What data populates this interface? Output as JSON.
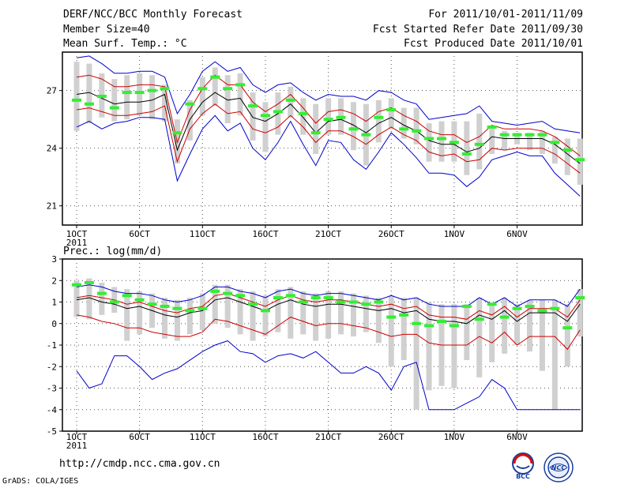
{
  "header": {
    "title": "DERF/NCC/BCC Monthly Forecast",
    "member_size": "Member Size=40",
    "variable": "Mean Surf. Temp.: °C",
    "period": "For 2011/10/01-2011/11/09",
    "refer_date": "Fcst Started Refer Date 2011/09/30",
    "produced_date": "Fcst Produced Date 2011/10/01"
  },
  "footer": {
    "url": "http://cmdp.ncc.cma.gov.cn",
    "credit": "GrADS: COLA/IGES",
    "logo1_text": "BCC",
    "logo2_text": "NCC"
  },
  "colors": {
    "mean": "#000000",
    "inner": "#cc0000",
    "outer": "#0000cc",
    "box": "#d0d0d0",
    "marker": "#33ee33",
    "grid": "#000000"
  },
  "chart_data": [
    {
      "type": "line",
      "title": "Mean Surf. Temp.: °C",
      "xlabel": "",
      "ylabel": "",
      "days": 40,
      "ylim": [
        20,
        29
      ],
      "yticks": [
        21,
        24,
        27
      ],
      "ytick_labels": [
        "21",
        "24",
        "27"
      ],
      "xtick_labels": [
        "1OCT",
        "6OCT",
        "11OCT",
        "16OCT",
        "21OCT",
        "26OCT",
        "1NOV",
        "6NOV"
      ],
      "year_label": "2011",
      "mean": [
        26.8,
        26.9,
        26.6,
        26.3,
        26.4,
        26.4,
        26.5,
        26.8,
        23.9,
        25.5,
        26.4,
        26.9,
        26.5,
        26.6,
        25.6,
        25.4,
        25.8,
        26.3,
        25.6,
        24.8,
        25.4,
        25.5,
        25.2,
        24.8,
        25.3,
        25.6,
        25.2,
        24.9,
        24.4,
        24.2,
        24.2,
        23.8,
        24.0,
        24.6,
        24.5,
        24.5,
        24.5,
        24.5,
        24.2,
        23.7,
        23.2
      ],
      "upper_red": [
        27.7,
        27.8,
        27.6,
        27.2,
        27.2,
        27.3,
        27.3,
        27.2,
        24.3,
        26.0,
        27.1,
        27.8,
        27.3,
        27.3,
        26.4,
        25.9,
        26.3,
        26.8,
        26.1,
        25.3,
        25.9,
        26.0,
        25.8,
        25.4,
        25.9,
        26.1,
        25.7,
        25.4,
        24.9,
        24.7,
        24.7,
        24.3,
        24.6,
        25.2,
        25.0,
        25.0,
        25.0,
        24.9,
        24.6,
        24.1,
        23.6
      ],
      "lower_red": [
        26.0,
        26.1,
        25.9,
        25.7,
        25.7,
        25.8,
        25.9,
        26.2,
        23.3,
        25.0,
        25.8,
        26.3,
        25.8,
        25.9,
        25.0,
        24.8,
        25.1,
        25.7,
        25.1,
        24.3,
        24.9,
        24.9,
        24.6,
        24.2,
        24.7,
        25.1,
        24.7,
        24.4,
        23.8,
        23.6,
        23.7,
        23.3,
        23.4,
        24.0,
        23.9,
        24.0,
        24.0,
        24.0,
        23.7,
        23.2,
        22.7
      ],
      "upper_blue": [
        28.7,
        28.8,
        28.4,
        27.9,
        27.9,
        28.0,
        28.0,
        27.7,
        25.8,
        26.8,
        28.0,
        28.5,
        28.0,
        28.2,
        27.3,
        26.9,
        27.3,
        27.4,
        26.9,
        26.5,
        26.8,
        26.7,
        26.7,
        26.5,
        27.0,
        26.9,
        26.5,
        26.3,
        25.5,
        25.6,
        25.7,
        25.8,
        26.2,
        25.4,
        25.3,
        25.2,
        25.3,
        25.4,
        25.0,
        24.9,
        24.8
      ],
      "lower_blue": [
        25.1,
        25.4,
        25.0,
        25.3,
        25.4,
        25.6,
        25.6,
        25.5,
        22.3,
        23.7,
        25.0,
        25.7,
        24.9,
        25.3,
        24.0,
        23.4,
        24.3,
        25.4,
        24.2,
        23.1,
        24.4,
        24.3,
        23.4,
        22.9,
        23.8,
        24.8,
        24.2,
        23.5,
        22.7,
        22.7,
        22.6,
        22.0,
        22.5,
        23.4,
        23.6,
        23.8,
        23.6,
        23.6,
        22.7,
        22.1,
        21.5
      ],
      "box_high": [
        28.5,
        28.4,
        27.9,
        27.6,
        27.8,
        27.9,
        27.8,
        27.3,
        25.5,
        26.5,
        27.7,
        28.2,
        27.8,
        27.9,
        26.9,
        26.4,
        26.9,
        27.2,
        26.6,
        26.3,
        26.6,
        26.6,
        26.4,
        26.3,
        26.5,
        26.6,
        26.1,
        26.1,
        25.3,
        25.4,
        25.4,
        25.4,
        25.8,
        25.1,
        24.9,
        24.8,
        24.8,
        24.9,
        24.6,
        24.5,
        24.5
      ],
      "box_low": [
        24.9,
        25.3,
        25.6,
        25.4,
        25.5,
        25.7,
        25.5,
        25.4,
        23.2,
        24.4,
        25.7,
        26.2,
        25.3,
        25.7,
        24.4,
        23.8,
        24.7,
        25.6,
        24.7,
        23.7,
        24.7,
        24.7,
        23.9,
        23.1,
        24.3,
        25.0,
        24.5,
        24.2,
        23.3,
        23.3,
        23.3,
        22.6,
        22.9,
        23.7,
        23.9,
        24.2,
        23.9,
        23.7,
        23.2,
        22.6,
        22.1
      ],
      "marker": [
        26.5,
        26.3,
        26.7,
        26.1,
        26.9,
        26.9,
        27.0,
        27.1,
        24.8,
        26.3,
        27.1,
        27.7,
        27.1,
        27.3,
        26.2,
        25.7,
        25.9,
        26.5,
        25.8,
        24.8,
        25.5,
        25.6,
        25.0,
        24.7,
        25.6,
        26.0,
        25.0,
        24.9,
        24.5,
        24.5,
        24.3,
        23.7,
        24.2,
        25.1,
        24.7,
        24.7,
        24.7,
        24.7,
        24.3,
        23.9,
        23.4
      ]
    },
    {
      "type": "line",
      "title": "Prec.: log(mm/d)",
      "xlabel": "",
      "ylabel": "",
      "days": 40,
      "ylim": [
        -5,
        3
      ],
      "yticks": [
        -5,
        -4,
        -3,
        -2,
        -1,
        0,
        1,
        2,
        3
      ],
      "ytick_labels": [
        "-5",
        "-4",
        "-3",
        "-2",
        "-1",
        "0",
        "1",
        "2",
        "3"
      ],
      "xtick_labels": [
        "1OCT",
        "6OCT",
        "11OCT",
        "16OCT",
        "21OCT",
        "26OCT",
        "1NOV",
        "6NOV"
      ],
      "year_label": "2011",
      "mean": [
        1.1,
        1.2,
        1.0,
        0.9,
        0.7,
        0.8,
        0.6,
        0.4,
        0.3,
        0.5,
        0.6,
        1.1,
        1.2,
        1.0,
        0.8,
        0.6,
        0.9,
        1.1,
        0.9,
        0.8,
        0.9,
        0.9,
        0.8,
        0.7,
        0.6,
        0.7,
        0.5,
        0.6,
        0.2,
        0.1,
        0.1,
        0.0,
        0.4,
        0.2,
        0.6,
        0.1,
        0.5,
        0.5,
        0.5,
        0.1,
        0.9
      ],
      "upper_red": [
        1.2,
        1.3,
        1.2,
        1.1,
        0.9,
        1.0,
        0.8,
        0.6,
        0.5,
        0.7,
        0.8,
        1.3,
        1.4,
        1.2,
        1.0,
        0.8,
        1.1,
        1.3,
        1.1,
        1.0,
        1.1,
        1.1,
        1.0,
        0.9,
        0.8,
        0.9,
        0.7,
        0.8,
        0.4,
        0.3,
        0.3,
        0.2,
        0.6,
        0.4,
        0.8,
        0.3,
        0.7,
        0.7,
        0.7,
        0.3,
        1.1
      ],
      "lower_red": [
        0.4,
        0.3,
        0.1,
        0.0,
        -0.2,
        -0.2,
        -0.4,
        -0.5,
        -0.6,
        -0.6,
        -0.4,
        0.2,
        0.1,
        -0.1,
        -0.3,
        -0.5,
        -0.1,
        0.3,
        0.1,
        -0.1,
        0.0,
        0.0,
        -0.1,
        -0.2,
        -0.4,
        -0.6,
        -0.5,
        -0.5,
        -0.9,
        -1.0,
        -1.0,
        -1.0,
        -0.6,
        -0.9,
        -0.4,
        -1.0,
        -0.6,
        -0.6,
        -0.6,
        -1.2,
        -0.3
      ],
      "upper_blue": [
        1.7,
        1.8,
        1.7,
        1.5,
        1.4,
        1.4,
        1.3,
        1.1,
        1.0,
        1.1,
        1.3,
        1.7,
        1.7,
        1.5,
        1.4,
        1.2,
        1.5,
        1.6,
        1.4,
        1.3,
        1.4,
        1.4,
        1.3,
        1.2,
        1.1,
        1.3,
        1.1,
        1.2,
        0.9,
        0.8,
        0.8,
        0.8,
        1.2,
        0.9,
        1.2,
        0.8,
        1.1,
        1.1,
        1.1,
        0.8,
        1.6
      ],
      "lower_blue": [
        -2.2,
        -3.0,
        -2.8,
        -1.5,
        -1.5,
        -2.0,
        -2.6,
        -2.3,
        -2.1,
        -1.7,
        -1.3,
        -1.0,
        -0.8,
        -1.3,
        -1.4,
        -1.8,
        -1.5,
        -1.4,
        -1.6,
        -1.3,
        -1.8,
        -2.3,
        -2.3,
        -2.0,
        -2.3,
        -3.1,
        -2.0,
        -1.8,
        -4.0,
        -4.0,
        -4.0,
        -3.7,
        -3.4,
        -2.6,
        -3.0,
        -4.0,
        -4.0,
        -4.0,
        -4.0,
        -4.0,
        -4.0
      ],
      "box_high": [
        2.0,
        2.1,
        1.9,
        1.7,
        1.6,
        1.5,
        1.4,
        1.2,
        1.1,
        1.2,
        1.4,
        1.8,
        1.8,
        1.6,
        1.5,
        1.3,
        1.6,
        1.7,
        1.5,
        1.4,
        1.5,
        1.5,
        1.4,
        1.3,
        1.2,
        1.3,
        1.2,
        1.2,
        1.0,
        0.9,
        0.9,
        0.9,
        1.2,
        0.9,
        1.2,
        0.9,
        1.1,
        1.1,
        1.1,
        0.9,
        1.6
      ],
      "box_low": [
        0.3,
        0.2,
        0.4,
        0.5,
        -0.8,
        -0.5,
        -0.2,
        -0.7,
        -0.8,
        -0.5,
        -0.3,
        0.0,
        -0.2,
        -0.5,
        -0.8,
        -0.6,
        -0.4,
        -0.7,
        -0.5,
        -0.8,
        -0.7,
        -0.5,
        -0.6,
        -0.4,
        -0.9,
        -2.0,
        -1.7,
        -4.0,
        -3.1,
        -2.9,
        -3.0,
        -1.7,
        -2.5,
        -1.8,
        -1.4,
        -1.0,
        -1.3,
        -2.2,
        -4.0,
        -2.0,
        -0.6
      ],
      "marker": [
        1.8,
        1.9,
        1.4,
        1.0,
        1.3,
        1.1,
        0.9,
        0.8,
        0.7,
        0.6,
        0.7,
        1.5,
        1.4,
        1.3,
        0.9,
        0.6,
        1.2,
        1.3,
        1.0,
        1.2,
        1.2,
        1.0,
        1.0,
        0.9,
        1.0,
        0.3,
        0.4,
        0.0,
        -0.1,
        0.1,
        -0.1,
        0.8,
        0.2,
        0.9,
        0.3,
        0.7,
        0.8,
        0.6,
        0.7,
        -0.2,
        1.2
      ]
    }
  ]
}
